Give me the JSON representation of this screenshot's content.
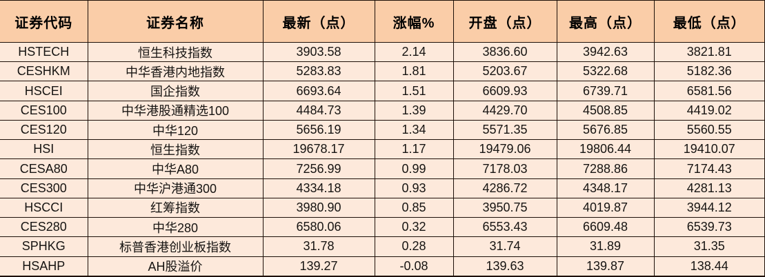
{
  "chart_data": {
    "type": "table",
    "columns": [
      {
        "key": "code",
        "label": "证券代码"
      },
      {
        "key": "name",
        "label": "证券名称"
      },
      {
        "key": "latest",
        "label": "最新（点）"
      },
      {
        "key": "change_pct",
        "label": "涨幅%"
      },
      {
        "key": "open",
        "label": "开盘（点）"
      },
      {
        "key": "high",
        "label": "最高（点）"
      },
      {
        "key": "low",
        "label": "最低（点）"
      }
    ],
    "rows": [
      [
        "HSTECH",
        "恒生科技指数",
        "3903.58",
        "2.14",
        "3836.60",
        "3942.63",
        "3821.81"
      ],
      [
        "CESHKM",
        "中华香港内地指数",
        "5283.83",
        "1.81",
        "5203.67",
        "5322.68",
        "5182.36"
      ],
      [
        "HSCEI",
        "国企指数",
        "6693.64",
        "1.51",
        "6609.93",
        "6739.71",
        "6581.56"
      ],
      [
        "CES100",
        "中华港股通精选100",
        "4484.73",
        "1.39",
        "4429.70",
        "4508.85",
        "4419.02"
      ],
      [
        "CES120",
        "中华120",
        "5656.19",
        "1.34",
        "5571.35",
        "5676.85",
        "5560.55"
      ],
      [
        "HSI",
        "恒生指数",
        "19678.17",
        "1.17",
        "19479.06",
        "19806.44",
        "19410.07"
      ],
      [
        "CESA80",
        "中华A80",
        "7256.99",
        "0.99",
        "7178.03",
        "7288.86",
        "7174.43"
      ],
      [
        "CES300",
        "中华沪港通300",
        "4334.18",
        "0.93",
        "4286.72",
        "4348.17",
        "4281.13"
      ],
      [
        "HSCCI",
        "红筹指数",
        "3980.90",
        "0.85",
        "3950.75",
        "4019.87",
        "3944.12"
      ],
      [
        "CES280",
        "中华280",
        "6580.06",
        "0.32",
        "6553.43",
        "6609.48",
        "6539.73"
      ],
      [
        "SPHKG",
        "标普香港创业板指数",
        "31.78",
        "0.28",
        "31.74",
        "31.89",
        "31.35"
      ],
      [
        "HSAHP",
        "AH股溢价",
        "139.27",
        "-0.08",
        "139.63",
        "139.87",
        "138.44"
      ]
    ],
    "colors": {
      "header_bg": "#FACDA8",
      "row_bg": "#FDE9DB",
      "border": "#1C0F08",
      "header_text": "#000000",
      "cell_text": "#161412"
    },
    "layout_hints": {
      "grid": true,
      "all_cells_centered": true
    }
  }
}
